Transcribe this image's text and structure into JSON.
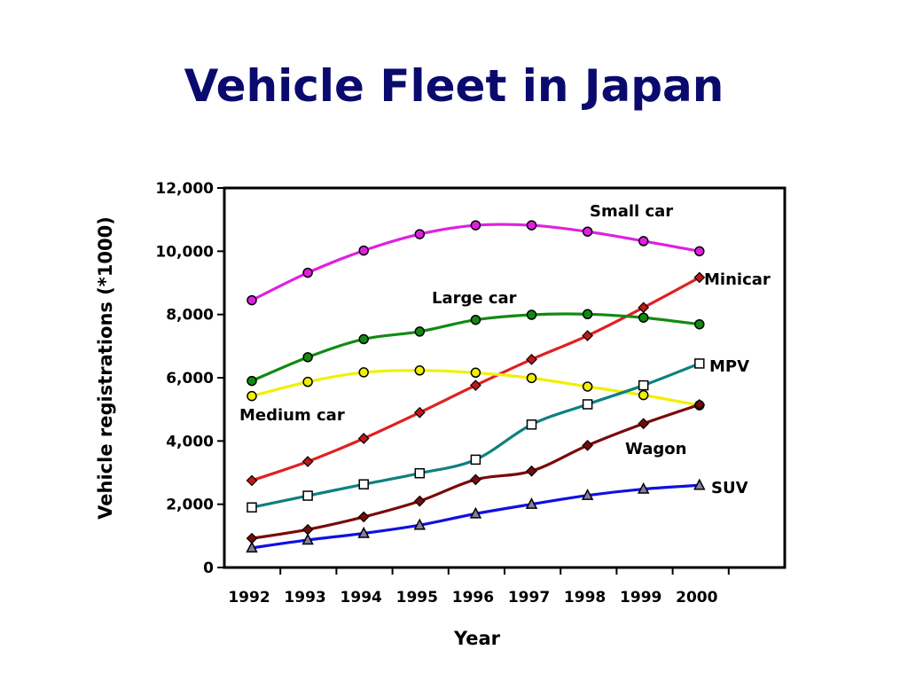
{
  "slide": {
    "title": "Vehicle Fleet in Japan"
  },
  "chart_data": {
    "type": "line",
    "title": "Vehicle Fleet in Japan",
    "xlabel": "Year",
    "ylabel": "Vehicle registrations (*1000)",
    "x": [
      "1992",
      "1993",
      "1994",
      "1995",
      "1996",
      "1997",
      "1998",
      "1999",
      "2000"
    ],
    "ylim": [
      0,
      12000
    ],
    "yticks": [
      "0",
      "2,000",
      "4,000",
      "6,000",
      "8,000",
      "10,000",
      "12,000"
    ],
    "yticks_values": [
      0,
      2000,
      4000,
      6000,
      8000,
      10000,
      12000
    ],
    "grid": false,
    "legend": "none (series labeled directly on chart)",
    "series": [
      {
        "name": "Small car",
        "color": "#e020e0",
        "marker": "circle",
        "marker_fill": "#e020e0",
        "values": [
          8450,
          9320,
          10020,
          10540,
          10820,
          10820,
          10620,
          10320,
          10000
        ]
      },
      {
        "name": "Minicar",
        "color": "#e02020",
        "marker": "diamond",
        "marker_fill": "#c01818",
        "values": [
          2750,
          3350,
          4080,
          4900,
          5760,
          6580,
          7330,
          8220,
          9170
        ]
      },
      {
        "name": "Large car",
        "color": "#128a12",
        "marker": "circle",
        "marker_fill": "#128a12",
        "values": [
          5900,
          6650,
          7220,
          7460,
          7830,
          7990,
          8010,
          7900,
          7690
        ]
      },
      {
        "name": "Medium car",
        "color": "#f2f000",
        "marker": "circle",
        "marker_fill": "#f2f000",
        "values": [
          5420,
          5870,
          6170,
          6230,
          6160,
          5990,
          5720,
          5450,
          5130
        ]
      },
      {
        "name": "MPV",
        "color": "#0e8080",
        "marker": "square",
        "marker_fill": "#ffffff",
        "values": [
          1900,
          2270,
          2630,
          2980,
          3410,
          4520,
          5160,
          5760,
          6450
        ]
      },
      {
        "name": "Wagon",
        "color": "#7a0a0a",
        "marker": "diamond",
        "marker_fill": "#7a0a0a",
        "values": [
          920,
          1200,
          1600,
          2100,
          2780,
          3050,
          3860,
          4550,
          5150
        ]
      },
      {
        "name": "SUV",
        "color": "#1010e0",
        "marker": "triangle",
        "marker_fill": "#8080a0",
        "values": [
          620,
          870,
          1080,
          1340,
          1700,
          2000,
          2280,
          2480,
          2600
        ]
      }
    ]
  }
}
